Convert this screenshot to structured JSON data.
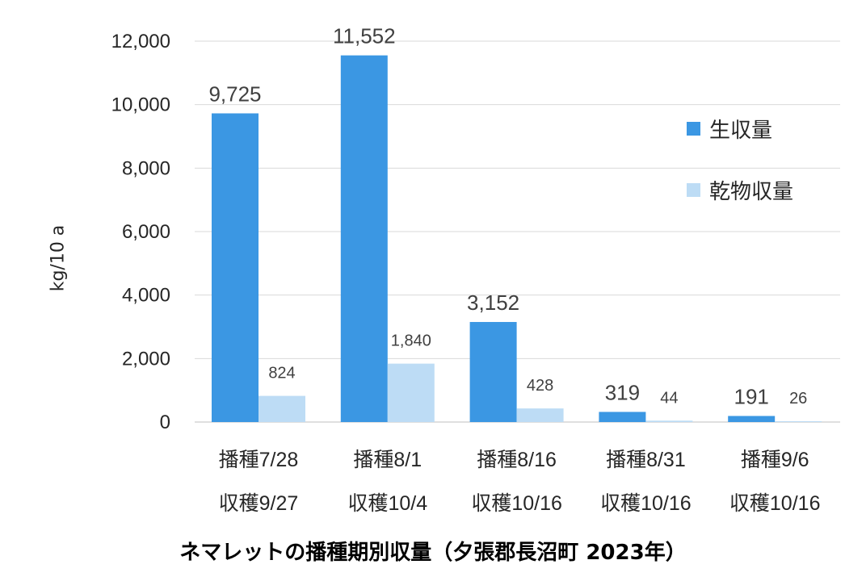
{
  "chart_data": {
    "type": "bar",
    "title": "ネマレットの播種期別収量（夕張郡長沼町 2023年）",
    "ylabel": "kg/10 a",
    "xlabel": "",
    "ylim": [
      0,
      12000
    ],
    "yticks": [
      "0",
      "2,000",
      "4,000",
      "6,000",
      "8,000",
      "10,000",
      "12,000"
    ],
    "categories": [
      [
        "播種7/28",
        "収穫9/27"
      ],
      [
        "播種8/1",
        "収穫10/4"
      ],
      [
        "播種8/16",
        "収穫10/16"
      ],
      [
        "播種8/31",
        "収穫10/16"
      ],
      [
        "播種9/6",
        "収穫10/16"
      ]
    ],
    "series": [
      {
        "name": "生収量",
        "color": "#3b97e3",
        "values": [
          9725,
          11552,
          3152,
          319,
          191
        ],
        "labels": [
          "9,725",
          "11,552",
          "3,152",
          "319",
          "191"
        ]
      },
      {
        "name": "乾物収量",
        "color": "#bddcf5",
        "values": [
          824,
          1840,
          428,
          44,
          26
        ],
        "labels": [
          "824",
          "1,840",
          "428",
          "44",
          "26"
        ]
      }
    ],
    "grid": true,
    "legend": "right"
  }
}
